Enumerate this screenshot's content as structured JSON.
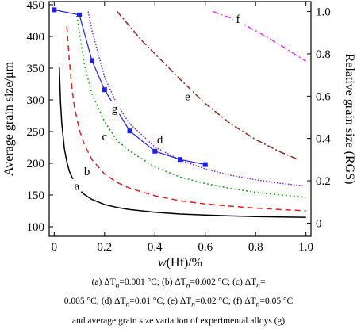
{
  "chart_data": {
    "type": "line",
    "x_range": [
      -0.02,
      1.02
    ],
    "y_left_range": [
      85,
      455
    ],
    "y_right_range": [
      -0.062,
      1.047
    ],
    "x_ticks": [
      0,
      0.2,
      0.4,
      0.6,
      0.8,
      1.0
    ],
    "x_tick_labels": [
      "0",
      "0.2",
      "0.4",
      "0.6",
      "0.8",
      "1.0"
    ],
    "y_left_ticks": [
      100,
      150,
      200,
      250,
      300,
      350,
      400,
      450
    ],
    "y_left_tick_labels": [
      "100",
      "150",
      "200",
      "250",
      "300",
      "350",
      "400",
      "450"
    ],
    "y_right_ticks": [
      0,
      0.2,
      0.4,
      0.6,
      0.8,
      1.0
    ],
    "y_right_tick_labels": [
      "0",
      "0.2",
      "0.4",
      "0.6",
      "0.8",
      "1.0"
    ],
    "xlabel_prefix": "w",
    "xlabel_rest": "(Hf)/%",
    "ylabel_left": "Average grain size/μm",
    "ylabel_right": "Relative grain size (RGS)",
    "legend": "none",
    "grid": false,
    "series": [
      {
        "label": "a",
        "axis": "right",
        "color": "#000000",
        "dash": "",
        "width": 1.5,
        "x": [
          0.02,
          0.025,
          0.03,
          0.04,
          0.05,
          0.06,
          0.08,
          0.1,
          0.12,
          0.15,
          0.2,
          0.25,
          0.3,
          0.4,
          0.5,
          0.6,
          0.7,
          0.8,
          0.9,
          1.0
        ],
        "y": [
          0.74,
          0.57,
          0.47,
          0.355,
          0.29,
          0.245,
          0.192,
          0.158,
          0.135,
          0.112,
          0.088,
          0.074,
          0.064,
          0.051,
          0.043,
          0.038,
          0.034,
          0.031,
          0.029,
          0.027
        ],
        "label_at": [
          0.09,
          0.175
        ]
      },
      {
        "label": "b",
        "axis": "right",
        "color": "#e02020",
        "dash": "7,5",
        "width": 1.5,
        "x": [
          0.05,
          0.06,
          0.07,
          0.08,
          0.1,
          0.12,
          0.15,
          0.2,
          0.25,
          0.3,
          0.4,
          0.5,
          0.6,
          0.7,
          0.8,
          0.9,
          1.0
        ],
        "y": [
          0.93,
          0.77,
          0.64,
          0.55,
          0.44,
          0.37,
          0.3,
          0.232,
          0.192,
          0.165,
          0.129,
          0.106,
          0.091,
          0.08,
          0.071,
          0.064,
          0.058
        ],
        "label_at": [
          0.13,
          0.245
        ]
      },
      {
        "label": "c",
        "axis": "right",
        "color": "#1a9a1a",
        "dash": "2,3",
        "width": 1.5,
        "x": [
          0.09,
          0.1,
          0.12,
          0.15,
          0.2,
          0.25,
          0.3,
          0.4,
          0.5,
          0.6,
          0.7,
          0.8,
          0.9,
          1.0
        ],
        "y": [
          0.98,
          0.9,
          0.75,
          0.61,
          0.48,
          0.39,
          0.34,
          0.265,
          0.218,
          0.187,
          0.164,
          0.146,
          0.133,
          0.122
        ],
        "label_at": [
          0.2,
          0.41
        ]
      },
      {
        "label": "d",
        "axis": "right",
        "color": "#7f1fd6",
        "dash": "1.5,2",
        "width": 1.5,
        "x": [
          0.135,
          0.15,
          0.2,
          0.25,
          0.3,
          0.4,
          0.5,
          0.6,
          0.7,
          0.8,
          0.9,
          1.0
        ],
        "y": [
          1.0,
          0.91,
          0.69,
          0.56,
          0.47,
          0.36,
          0.298,
          0.256,
          0.226,
          0.205,
          0.188,
          0.175
        ],
        "label_at": [
          0.42,
          0.395
        ]
      },
      {
        "label": "e",
        "axis": "right",
        "color": "#8b2a1a",
        "dash": "8,3,2,3",
        "width": 1.5,
        "x": [
          0.25,
          0.3,
          0.35,
          0.4,
          0.5,
          0.6,
          0.7,
          0.8,
          0.9,
          0.97
        ],
        "y": [
          1.0,
          0.93,
          0.86,
          0.8,
          0.68,
          0.565,
          0.47,
          0.395,
          0.335,
          0.3
        ],
        "label_at": [
          0.53,
          0.6
        ]
      },
      {
        "label": "f",
        "axis": "right",
        "color": "#e23ee2",
        "dash": "8,3,2,3",
        "width": 1.5,
        "x": [
          0.63,
          0.7,
          0.8,
          0.9,
          1.0
        ],
        "y": [
          1.0,
          0.97,
          0.91,
          0.84,
          0.765
        ],
        "label_at": [
          0.73,
          0.965
        ]
      },
      {
        "label": "g",
        "axis": "left",
        "color": "#2020e0",
        "dash": "",
        "width": 1.2,
        "markers": true,
        "x": [
          0.0,
          0.1,
          0.15,
          0.2,
          0.3,
          0.4,
          0.5,
          0.6
        ],
        "y": [
          442,
          434,
          362,
          316,
          251,
          219,
          206,
          198
        ],
        "label_at": [
          0.24,
          286
        ]
      }
    ]
  },
  "caption": {
    "line1": "(a) ΔT",
    "line1_sub": "n",
    "line1_rest": "=0.001 °C; (b) ΔT",
    "line1_sub2": "n",
    "line1_rest2": "=0.002 °C; (c) ΔT",
    "line1_sub3": "n",
    "line1_rest3": "=",
    "line2": "0.005 °C; (d) ΔT",
    "line2_sub": "n",
    "line2_rest": "=0.01 °C; (e) ΔT",
    "line2_sub2": "n",
    "line2_rest2": "=0.02 °C; (f) ΔT",
    "line2_sub3": "n",
    "line2_rest3": "=0.05 °C",
    "line3": "and average grain size variation of experimental alloys (g)"
  }
}
